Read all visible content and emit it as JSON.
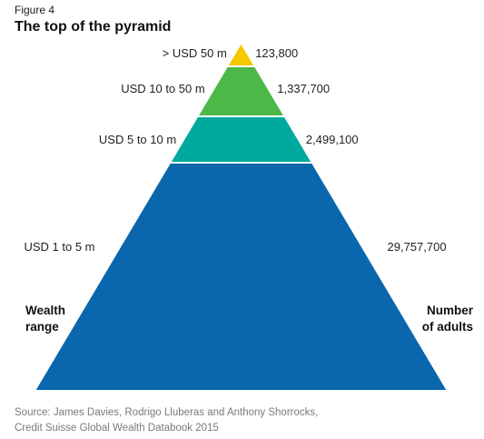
{
  "figure_label": "Figure 4",
  "title": "The top of the pyramid",
  "left_heading": [
    "Wealth",
    "range"
  ],
  "right_heading": [
    "Number",
    "of adults"
  ],
  "source": [
    "Source: James Davies, Rodrigo Lluberas and Anthony Shorrocks,",
    "Credit Suisse Global Wealth Databook 2015"
  ],
  "chart_data": {
    "type": "pyramid",
    "title": "The top of the pyramid",
    "series_labels": [
      "Wealth range",
      "Number of adults"
    ],
    "tiers": [
      {
        "range": "> USD 50 m",
        "adults": 123800,
        "adults_label": "123,800",
        "color": "#f5c800"
      },
      {
        "range": "USD 10 to 50 m",
        "adults": 1337700,
        "adults_label": "1,337,700",
        "color": "#4cb848"
      },
      {
        "range": "USD 5 to 10 m",
        "adults": 2499100,
        "adults_label": "2,499,100",
        "color": "#00a99d"
      },
      {
        "range": "USD 1 to 5 m",
        "adults": 29757700,
        "adults_label": "29,757,700",
        "color": "#0a67ad"
      }
    ]
  }
}
